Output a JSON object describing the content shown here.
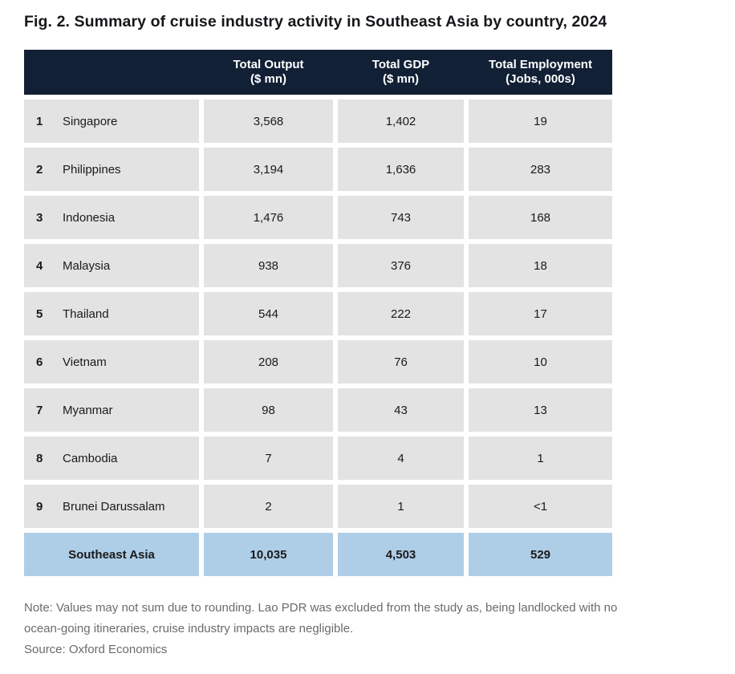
{
  "title": "Fig. 2. Summary of cruise industry activity in Southeast Asia by country, 2024",
  "chart_data": {
    "type": "table",
    "title": "Fig. 2. Summary of cruise industry activity in Southeast Asia by country, 2024",
    "columns": [
      {
        "line1": "Total Output",
        "line2": "($ mn)"
      },
      {
        "line1": "Total GDP",
        "line2": "($ mn)"
      },
      {
        "line1": "Total Employment",
        "line2": "(Jobs, 000s)"
      }
    ],
    "rows": [
      {
        "rank": "1",
        "country": "Singapore",
        "total_output": "3,568",
        "total_gdp": "1,402",
        "total_employment": "19"
      },
      {
        "rank": "2",
        "country": "Philippines",
        "total_output": "3,194",
        "total_gdp": "1,636",
        "total_employment": "283"
      },
      {
        "rank": "3",
        "country": "Indonesia",
        "total_output": "1,476",
        "total_gdp": "743",
        "total_employment": "168"
      },
      {
        "rank": "4",
        "country": "Malaysia",
        "total_output": "938",
        "total_gdp": "376",
        "total_employment": "18"
      },
      {
        "rank": "5",
        "country": "Thailand",
        "total_output": "544",
        "total_gdp": "222",
        "total_employment": "17"
      },
      {
        "rank": "6",
        "country": "Vietnam",
        "total_output": "208",
        "total_gdp": "76",
        "total_employment": "10"
      },
      {
        "rank": "7",
        "country": "Myanmar",
        "total_output": "98",
        "total_gdp": "43",
        "total_employment": "13"
      },
      {
        "rank": "8",
        "country": "Cambodia",
        "total_output": "7",
        "total_gdp": "4",
        "total_employment": "1"
      },
      {
        "rank": "9",
        "country": "Brunei Darussalam",
        "total_output": "2",
        "total_gdp": "1",
        "total_employment": "<1"
      }
    ],
    "total_row": {
      "label": "Southeast Asia",
      "total_output": "10,035",
      "total_gdp": "4,503",
      "total_employment": "529"
    },
    "note": "Note: Values may not sum due to rounding. Lao PDR was excluded from the study as, being landlocked with no ocean-going itineraries, cruise industry impacts are negligible.",
    "source": "Source: Oxford Economics"
  },
  "colors": {
    "header_bg": "#122036",
    "header_text": "#ffffff",
    "cell_bg": "#e3e3e3",
    "total_bg": "#aecde7",
    "body_text": "#1a1a1a",
    "note_text": "#6b6b6b"
  }
}
